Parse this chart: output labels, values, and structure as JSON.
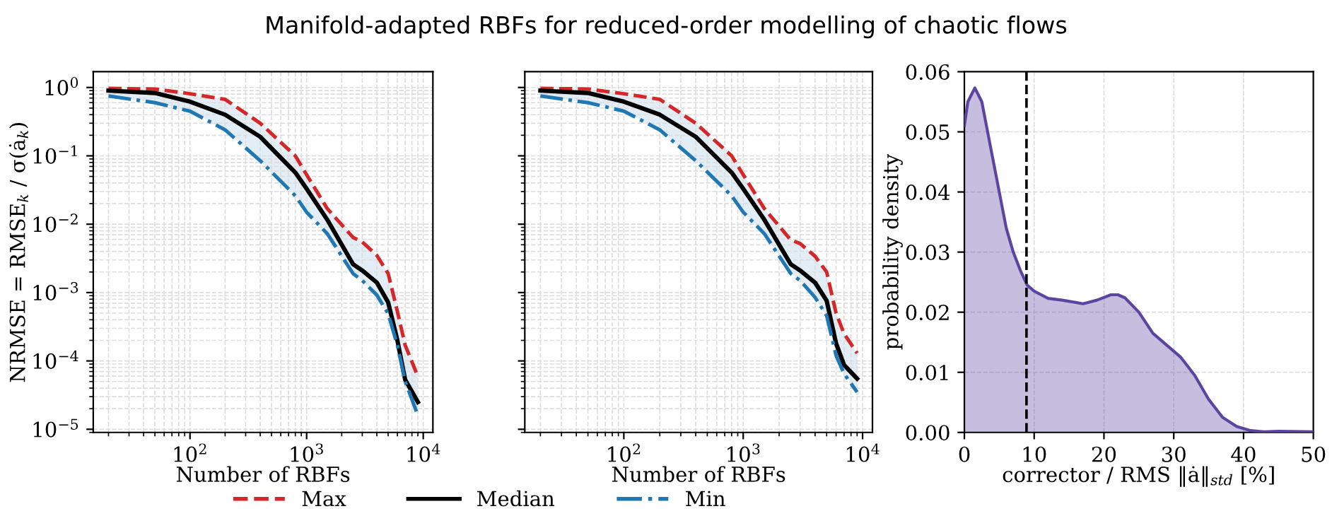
{
  "chart_data": [
    {
      "type": "line",
      "title": "Manifold-adapted RBFs for reduced-order modelling of chaotic flows",
      "xlabel": "Number of RBFs",
      "ylabel": "NRMSE = RMSE$_{k}$ / σ(ȧ$_{k}$)",
      "log": "xy",
      "grid": true,
      "legend": "bottom",
      "xlim": [
        14.8,
        12100
      ],
      "xticks": [
        {
          "value": 100,
          "label": "10$^{2}$"
        },
        {
          "value": 1000,
          "label": "10$^{3}$"
        },
        {
          "value": 10000,
          "label": "10$^{4}$"
        }
      ],
      "ylim": [
        9e-06,
        1.7
      ],
      "yticks": [
        {
          "value": 1e-05,
          "label": "10$^{−5}$"
        },
        {
          "value": 0.0001,
          "label": "10$^{−4}$"
        },
        {
          "value": 0.001,
          "label": "10$^{−3}$"
        },
        {
          "value": 0.01,
          "label": "10$^{−2}$"
        },
        {
          "value": 0.1,
          "label": "10$^{−1}$"
        },
        {
          "value": 1,
          "label": "10$^{0}$"
        }
      ],
      "x": [
        20,
        50,
        100,
        200,
        400,
        800,
        1000,
        1500,
        2500,
        3000,
        4000,
        5000,
        6000,
        7000,
        9000
      ],
      "series": [
        {
          "name": "Max",
          "color": "#d62728",
          "line_style": "dashed",
          "values": [
            0.97,
            0.95,
            0.81,
            0.67,
            0.3,
            0.1,
            0.053,
            0.017,
            0.0064,
            0.0055,
            0.0035,
            0.0019,
            0.00053,
            0.00017,
            5.9e-05
          ]
        },
        {
          "name": "Median",
          "color": "#000000",
          "line_style": "solid",
          "values": [
            0.9,
            0.83,
            0.62,
            0.4,
            0.19,
            0.057,
            0.033,
            0.0117,
            0.0026,
            0.0021,
            0.0014,
            0.00072,
            0.0002,
            5.3e-05,
            2.5e-05
          ],
          "lower": [
            0.75,
            0.6,
            0.45,
            0.24,
            0.085,
            0.026,
            0.015,
            0.0073,
            0.0019,
            0.0015,
            0.00092,
            0.00049,
            0.00017,
            5e-05,
            1.6e-05
          ],
          "upper": [
            0.97,
            0.95,
            0.81,
            0.67,
            0.3,
            0.1,
            0.053,
            0.017,
            0.0064,
            0.0055,
            0.0035,
            0.0019,
            0.00053,
            0.00017,
            5.9e-05
          ]
        },
        {
          "name": "Min",
          "color": "#1f77b4",
          "line_style": "dashdot",
          "values": [
            0.75,
            0.6,
            0.45,
            0.24,
            0.085,
            0.026,
            0.015,
            0.0073,
            0.0019,
            0.0015,
            0.00092,
            0.00049,
            0.00017,
            5e-05,
            1.6e-05
          ]
        }
      ]
    },
    {
      "type": "line",
      "xlabel": "Number of RBFs",
      "log": "xy",
      "grid": true,
      "tick_labels": "x",
      "xlim": [
        14.8,
        12100
      ],
      "xticks": [
        {
          "value": 100,
          "label": "10$^{2}$"
        },
        {
          "value": 1000,
          "label": "10$^{3}$"
        },
        {
          "value": 10000,
          "label": "10$^{4}$"
        }
      ],
      "ylim": [
        9e-06,
        1.7
      ],
      "x": [
        20,
        50,
        100,
        200,
        400,
        800,
        1000,
        1500,
        2500,
        3000,
        4000,
        5000,
        6000,
        7000,
        9000
      ],
      "series": [
        {
          "color": "#d62728",
          "line_style": "dashed",
          "values": [
            0.97,
            0.95,
            0.81,
            0.67,
            0.3,
            0.1,
            0.053,
            0.017,
            0.0059,
            0.0052,
            0.0034,
            0.002,
            0.0005,
            0.00025,
            0.00013
          ]
        },
        {
          "color": "#000000",
          "line_style": "solid",
          "values": [
            0.9,
            0.83,
            0.62,
            0.4,
            0.19,
            0.057,
            0.033,
            0.0117,
            0.0026,
            0.0021,
            0.0014,
            0.00076,
            0.00018,
            8.7e-05,
            5.5e-05
          ],
          "lower": [
            0.75,
            0.6,
            0.45,
            0.24,
            0.085,
            0.026,
            0.015,
            0.0073,
            0.0019,
            0.0015,
            0.00085,
            0.00046,
            0.00012,
            6.5e-05,
            3.5e-05
          ],
          "upper": [
            0.97,
            0.95,
            0.81,
            0.67,
            0.3,
            0.1,
            0.053,
            0.017,
            0.0059,
            0.0052,
            0.0034,
            0.002,
            0.0005,
            0.00025,
            0.00013
          ]
        },
        {
          "color": "#1f77b4",
          "line_style": "dashdot",
          "values": [
            0.75,
            0.6,
            0.45,
            0.24,
            0.085,
            0.026,
            0.015,
            0.0073,
            0.0019,
            0.0015,
            0.00085,
            0.00046,
            0.00012,
            6.5e-05,
            3.5e-05
          ]
        }
      ]
    },
    {
      "type": "area",
      "xlabel": "corrector / RMS ‖ȧ‖$_{std}$ [%]",
      "ylabel": "probability density",
      "grid": true,
      "xlim": [
        0,
        50
      ],
      "xticks": [
        0,
        10,
        20,
        30,
        40,
        50
      ],
      "ylim": [
        0,
        0.06
      ],
      "yticks": [
        {
          "value": 0,
          "label": "0.00"
        },
        0.01,
        0.02,
        0.03,
        0.04,
        0.05,
        0.06
      ],
      "ref_lines": [
        {
          "axis": "x",
          "value": 8.9,
          "color": "#000000",
          "line_style": "dashed"
        }
      ],
      "series": [
        {
          "color": "#5b45a0",
          "x": [
            0,
            0.5,
            1.5,
            2.5,
            4,
            5,
            6,
            7,
            8,
            9,
            10,
            12,
            14,
            17,
            19,
            21,
            22,
            23,
            25,
            27,
            29,
            31,
            33,
            35,
            37,
            39,
            41,
            43,
            45,
            50
          ],
          "values": [
            0.051,
            0.055,
            0.0573,
            0.055,
            0.046,
            0.04,
            0.034,
            0.03,
            0.027,
            0.0245,
            0.0235,
            0.0223,
            0.022,
            0.0214,
            0.022,
            0.0229,
            0.0229,
            0.0224,
            0.02,
            0.0165,
            0.0145,
            0.0125,
            0.0095,
            0.0055,
            0.0025,
            0.001,
            0.0003,
            0.0001,
            0.0002,
            0.0001
          ]
        }
      ]
    }
  ]
}
